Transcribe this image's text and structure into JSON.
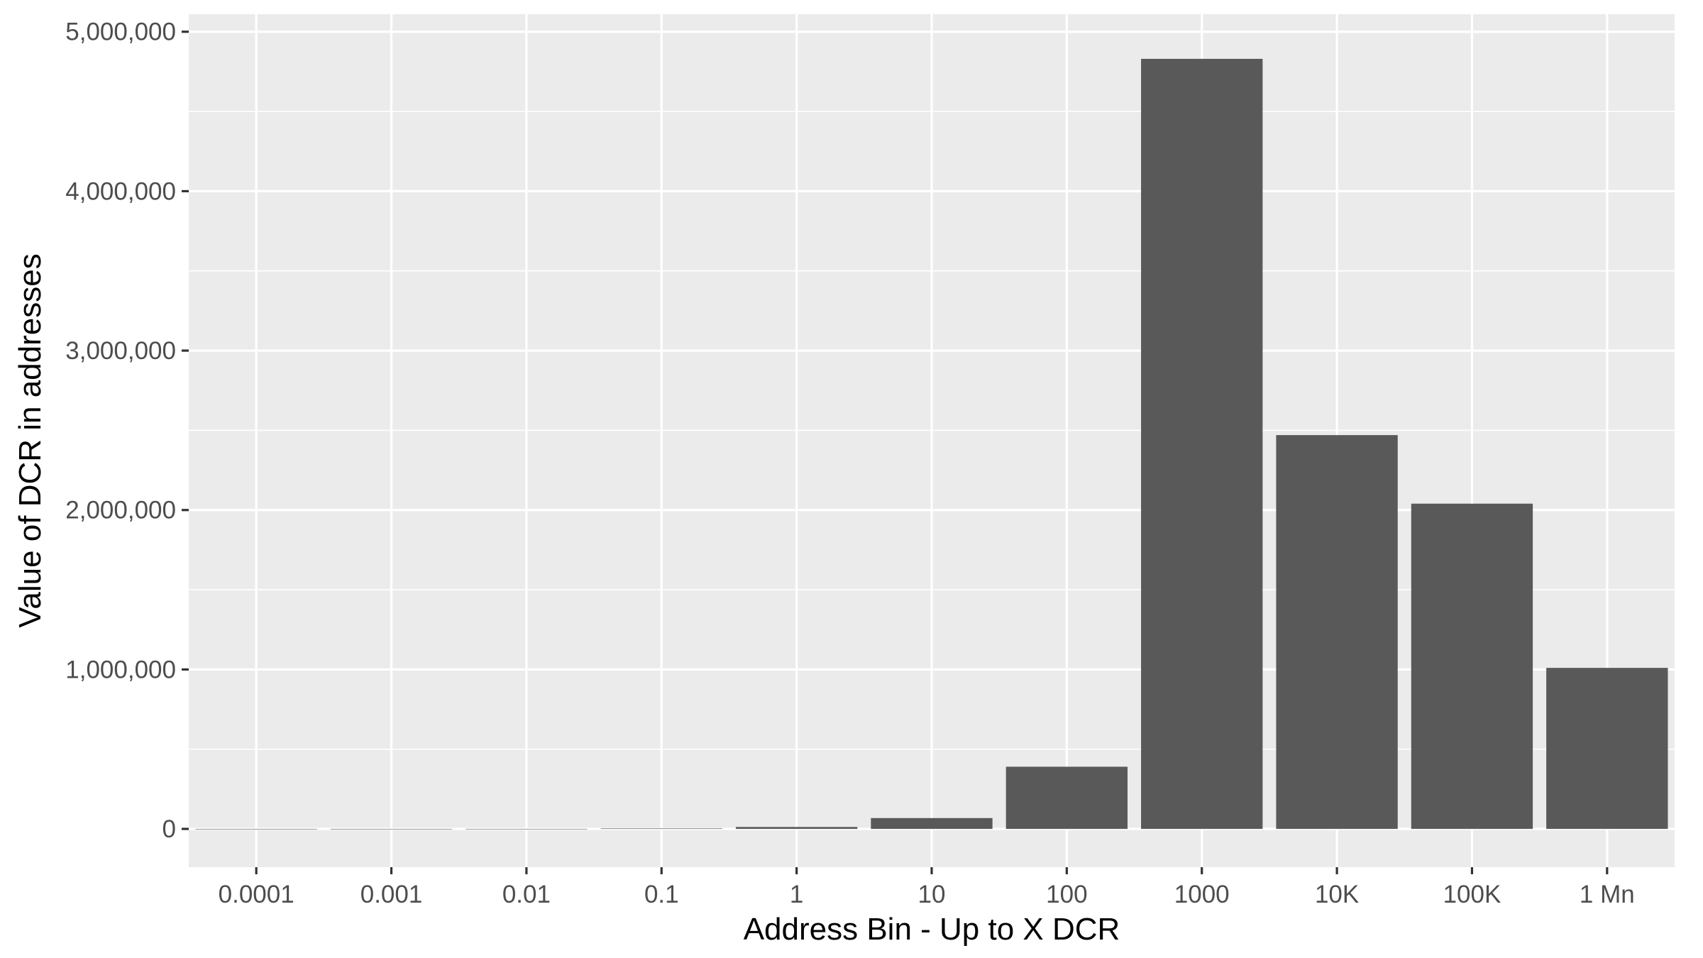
{
  "chart_data": {
    "type": "bar",
    "categories": [
      "0.0001",
      "0.001",
      "0.01",
      "0.1",
      "1",
      "10",
      "100",
      "1000",
      "10K",
      "100K",
      "1 Mn"
    ],
    "values": [
      15,
      120,
      600,
      3000,
      12000,
      68000,
      390000,
      4830000,
      2470000,
      2040000,
      1010000
    ],
    "xlabel": "Address Bin - Up to X DCR",
    "ylabel": "Value of DCR in addresses",
    "ylim": [
      -240000,
      5110000
    ],
    "yticks": [
      0,
      1000000,
      2000000,
      3000000,
      4000000,
      5000000
    ],
    "ytick_labels": [
      "0",
      "1,000,000",
      "2,000,000",
      "3,000,000",
      "4,000,000",
      "5,000,000"
    ],
    "grid": true,
    "legend": "none",
    "colors": {
      "bar": "#595959",
      "panel": "#EBEBEB",
      "grid": "#FFFFFF",
      "tick_text": "#4D4D4D",
      "title_text": "#000000"
    }
  }
}
